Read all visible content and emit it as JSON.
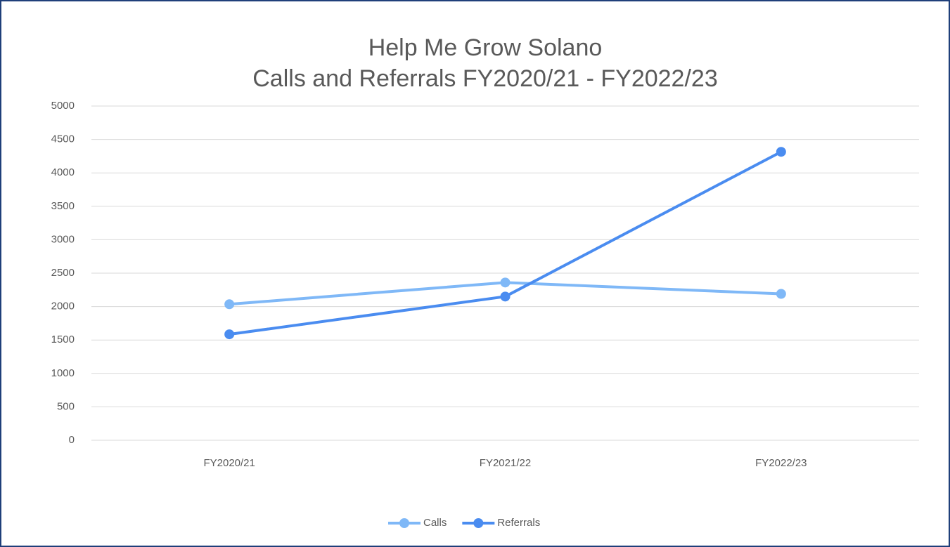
{
  "chart_data": {
    "type": "line",
    "title": "Help Me Grow Solano",
    "subtitle": "Calls and Referrals FY2020/21 - FY2022/23",
    "categories": [
      "FY2020/21",
      "FY2021/22",
      "FY2022/23"
    ],
    "series": [
      {
        "name": "Calls",
        "color": "#7fb8f7",
        "values": [
          2035,
          2360,
          2190
        ]
      },
      {
        "name": "Referrals",
        "color": "#4a8cf0",
        "values": [
          1585,
          2150,
          4315
        ]
      }
    ],
    "ylim": [
      0,
      5000
    ],
    "yticks": [
      0,
      500,
      1000,
      1500,
      2000,
      2500,
      3000,
      3500,
      4000,
      4500,
      5000
    ],
    "grid": true,
    "legend": "bottom"
  }
}
